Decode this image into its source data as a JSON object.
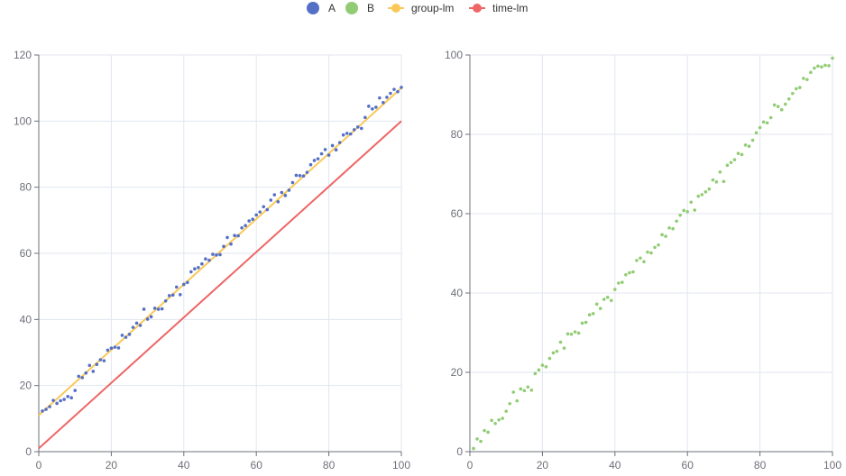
{
  "legend": [
    {
      "name": "A",
      "kind": "dot",
      "color": "#5470c6"
    },
    {
      "name": "B",
      "kind": "dot",
      "color": "#91cc75"
    },
    {
      "name": "group-lm",
      "kind": "line",
      "color": "#fac858"
    },
    {
      "name": "time-lm",
      "kind": "line",
      "color": "#ee6666"
    }
  ],
  "chart_data": [
    {
      "type": "scatter",
      "title": "",
      "xlabel": "",
      "ylabel": "",
      "xlim": [
        0,
        100
      ],
      "ylim": [
        0,
        120
      ],
      "x_ticks": [
        0,
        20,
        40,
        60,
        80,
        100
      ],
      "y_ticks": [
        0,
        20,
        40,
        60,
        80,
        100,
        120
      ],
      "grid": true,
      "legend_position": "top-center",
      "series": [
        {
          "name": "A",
          "type": "scatter",
          "color": "#5470c6",
          "x": [
            1,
            2,
            3,
            4,
            5,
            6,
            7,
            8,
            9,
            10,
            11,
            12,
            13,
            14,
            15,
            16,
            17,
            18,
            19,
            20,
            21,
            22,
            23,
            24,
            25,
            26,
            27,
            28,
            29,
            30,
            31,
            32,
            33,
            34,
            35,
            36,
            37,
            38,
            39,
            40,
            41,
            42,
            43,
            44,
            45,
            46,
            47,
            48,
            49,
            50,
            51,
            52,
            53,
            54,
            55,
            56,
            57,
            58,
            59,
            60,
            61,
            62,
            63,
            64,
            65,
            66,
            67,
            68,
            69,
            70,
            71,
            72,
            73,
            74,
            75,
            76,
            77,
            78,
            79,
            80,
            81,
            82,
            83,
            84,
            85,
            86,
            87,
            88,
            89,
            90,
            91,
            92,
            93,
            94,
            95,
            96,
            97,
            98,
            99,
            100
          ],
          "y": [
            12.3,
            12.8,
            13.6,
            15.5,
            14.6,
            15.4,
            15.8,
            16.7,
            16.3,
            18.5,
            22.8,
            22.4,
            23.8,
            26.1,
            24.3,
            26.4,
            27.8,
            27.5,
            30.7,
            31.3,
            31.6,
            31.4,
            35.2,
            34.6,
            35.5,
            37.6,
            38.9,
            38.2,
            43.1,
            40.1,
            40.8,
            43.4,
            43.1,
            43.2,
            45.6,
            47.2,
            47.4,
            49.8,
            47.5,
            50.6,
            51.2,
            54.4,
            55.3,
            55.7,
            56.8,
            58.3,
            57.9,
            59.7,
            59.5,
            59.6,
            62.1,
            64.8,
            62.8,
            65.4,
            65.3,
            67.7,
            68.4,
            69.8,
            70.3,
            71.6,
            72.5,
            74.1,
            73.2,
            76.1,
            77.7,
            75.6,
            78.4,
            77.5,
            79.1,
            81.4,
            83.6,
            83.5,
            83.4,
            84.5,
            86.8,
            88.1,
            88.6,
            90.1,
            91.4,
            89.7,
            92.6,
            91.3,
            93.5,
            95.8,
            96.3,
            96.1,
            97.4,
            98.2,
            97.8,
            101.1,
            104.5,
            103.7,
            104.2,
            107.0,
            105.6,
            107.2,
            108.4,
            109.6,
            108.9,
            110.2
          ]
        },
        {
          "name": "group-lm",
          "type": "line",
          "color": "#fac858",
          "x": [
            0,
            100
          ],
          "y": [
            11,
            110
          ]
        },
        {
          "name": "time-lm",
          "type": "line",
          "color": "#ee6666",
          "x": [
            0,
            100
          ],
          "y": [
            1,
            100
          ]
        }
      ]
    },
    {
      "type": "scatter",
      "title": "",
      "xlabel": "",
      "ylabel": "",
      "xlim": [
        0,
        100
      ],
      "ylim": [
        0,
        100
      ],
      "x_ticks": [
        0,
        20,
        40,
        60,
        80,
        100
      ],
      "y_ticks": [
        0,
        20,
        40,
        60,
        80,
        100
      ],
      "grid": true,
      "series": [
        {
          "name": "B",
          "type": "scatter",
          "color": "#91cc75",
          "x": [
            1,
            2,
            3,
            4,
            5,
            6,
            7,
            8,
            9,
            10,
            11,
            12,
            13,
            14,
            15,
            16,
            17,
            18,
            19,
            20,
            21,
            22,
            23,
            24,
            25,
            26,
            27,
            28,
            29,
            30,
            31,
            32,
            33,
            34,
            35,
            36,
            37,
            38,
            39,
            40,
            41,
            42,
            43,
            44,
            45,
            46,
            47,
            48,
            49,
            50,
            51,
            52,
            53,
            54,
            55,
            56,
            57,
            58,
            59,
            60,
            61,
            62,
            63,
            64,
            65,
            66,
            67,
            68,
            69,
            70,
            71,
            72,
            73,
            74,
            75,
            76,
            77,
            78,
            79,
            80,
            81,
            82,
            83,
            84,
            85,
            86,
            87,
            88,
            89,
            90,
            91,
            92,
            93,
            94,
            95,
            96,
            97,
            98,
            99,
            100
          ],
          "y": [
            0.8,
            3.2,
            2.6,
            5.3,
            4.9,
            7.9,
            7.1,
            8.0,
            8.4,
            10.2,
            12.1,
            15.0,
            12.8,
            15.8,
            15.4,
            16.3,
            15.5,
            19.7,
            20.6,
            21.8,
            21.4,
            23.5,
            24.9,
            25.3,
            27.6,
            26.1,
            29.7,
            29.6,
            30.2,
            29.9,
            32.4,
            32.6,
            34.5,
            34.8,
            37.2,
            36.1,
            38.4,
            38.9,
            38.1,
            40.9,
            42.5,
            42.7,
            44.6,
            45.1,
            45.3,
            48.2,
            48.8,
            47.9,
            50.3,
            50.1,
            51.5,
            52.1,
            54.7,
            54.3,
            56.4,
            56.2,
            58.1,
            59.6,
            60.8,
            60.5,
            62.9,
            60.9,
            64.4,
            64.8,
            65.5,
            66.2,
            68.5,
            68.0,
            70.5,
            68.1,
            72.2,
            72.9,
            73.6,
            75.2,
            74.9,
            77.3,
            77.0,
            78.5,
            80.4,
            81.7,
            83.1,
            82.9,
            84.2,
            87.4,
            87.0,
            86.2,
            87.6,
            88.9,
            90.3,
            91.5,
            91.8,
            94.1,
            93.8,
            95.6,
            96.7,
            97.2,
            97.0,
            97.4,
            97.3,
            99.2
          ]
        }
      ]
    }
  ]
}
